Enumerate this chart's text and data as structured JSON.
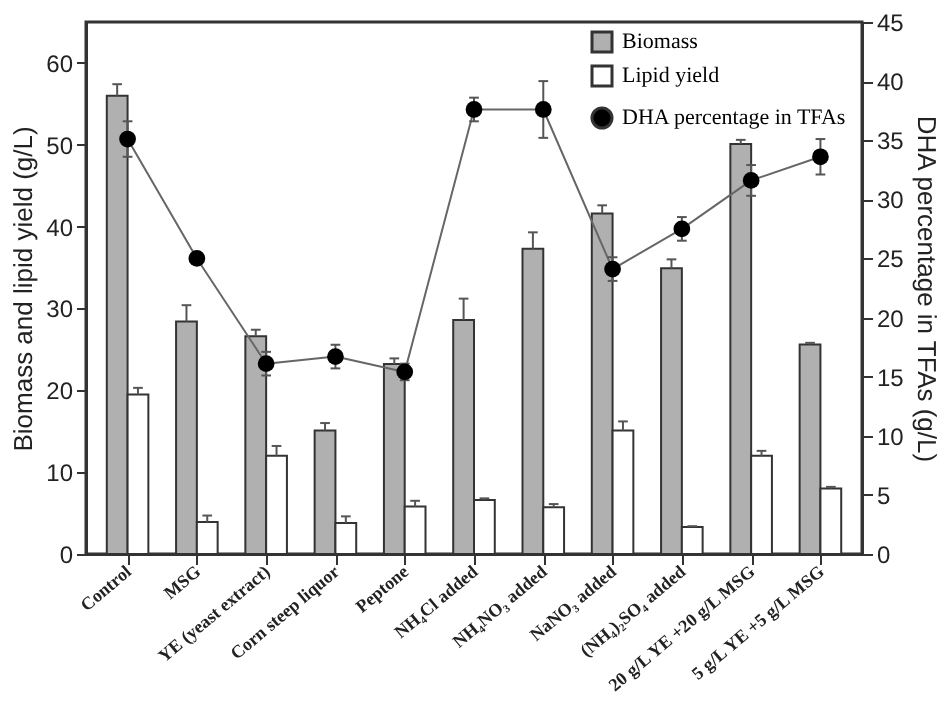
{
  "chart_data": {
    "type": "bar",
    "categories": [
      "Control",
      "MSG",
      "YE (yeast extract)",
      "Corn steep liquor",
      "Peptone",
      "NH₄Cl added",
      "NH₄NO₃ added",
      "NaNO₃ added",
      "(NH₄)₂SO₄ added",
      "20 g/L YE +20 g/L MSG",
      "5 g/L YE +5 g/L MSG"
    ],
    "series": [
      {
        "name": "Biomass",
        "color": "#b0b0b0",
        "values": [
          56.0,
          28.4,
          26.6,
          15.1,
          23.2,
          28.6,
          37.3,
          41.6,
          34.9,
          50.1,
          25.6
        ],
        "errors": [
          1.4,
          2.0,
          0.8,
          0.9,
          0.7,
          2.6,
          2.0,
          1.0,
          1.1,
          0.5,
          0.2
        ]
      },
      {
        "name": "Lipid yield",
        "color": "#ffffff",
        "values": [
          19.5,
          3.9,
          12.0,
          3.8,
          5.8,
          6.6,
          5.7,
          15.1,
          3.3,
          12.0,
          8.0
        ],
        "errors": [
          0.8,
          0.8,
          1.2,
          0.8,
          0.7,
          0.2,
          0.4,
          1.1,
          0.1,
          0.6,
          0.2
        ]
      },
      {
        "name": "DHA percentage in TFAs",
        "type": "line",
        "axis": "y2",
        "color": "#000000",
        "marker": "circle",
        "values": [
          35.1,
          25.0,
          16.1,
          16.7,
          15.4,
          37.6,
          37.6,
          24.1,
          27.5,
          31.6,
          33.6
        ],
        "errors": [
          1.5,
          null,
          1.0,
          1.0,
          0.7,
          1.0,
          2.4,
          1.0,
          1.0,
          1.3,
          1.5
        ]
      }
    ],
    "ylabel": "Biomass and lipid yield (g/L)",
    "y2label": "DHA percentage in TFAs (g/L)",
    "ylim": [
      0,
      65
    ],
    "yticks": [
      0,
      10,
      20,
      30,
      40,
      50,
      60
    ],
    "y2lim": [
      0,
      45
    ],
    "y2ticks": [
      0,
      5,
      10,
      15,
      20,
      25,
      30,
      35,
      40,
      45
    ],
    "legend": "top right",
    "grid": false
  }
}
